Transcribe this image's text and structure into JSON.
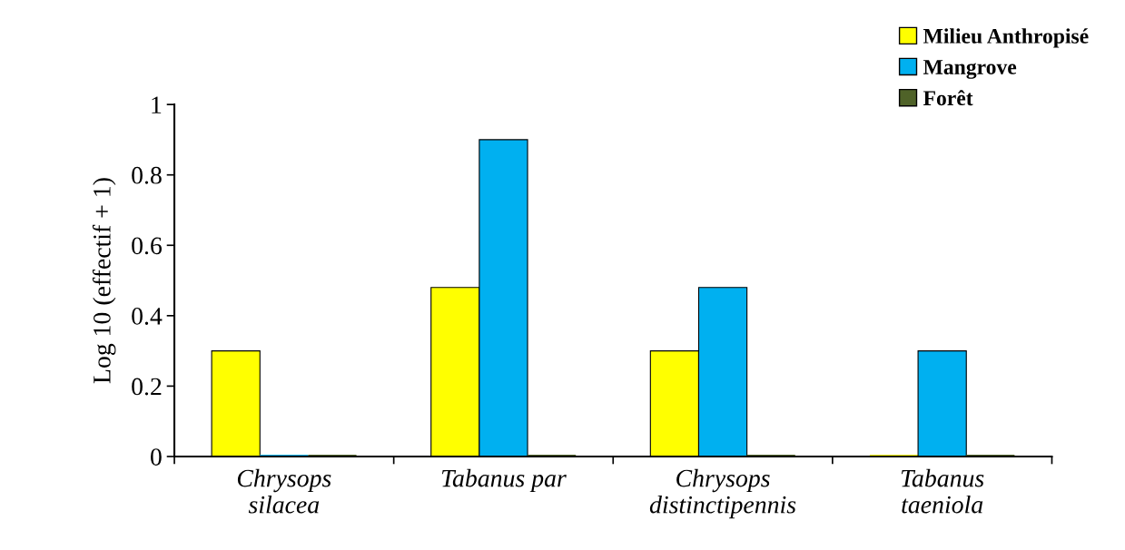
{
  "chart_data": {
    "type": "bar",
    "ylabel": "Log 10 (effectif + 1)",
    "categories": [
      "Chrysops\nsilacea",
      "Tabanus par",
      "Chrysops\ndistinctipennis",
      "Tabanus\ntaeniola"
    ],
    "series": [
      {
        "name": "Milieu Anthropisé",
        "color": "#ffff00",
        "values": [
          0.3,
          0.48,
          0.3,
          0
        ]
      },
      {
        "name": "Mangrove",
        "color": "#00b0f0",
        "values": [
          0,
          0.9,
          0.48,
          0.3
        ]
      },
      {
        "name": "Forêt",
        "color": "#4f6228",
        "values": [
          0,
          0,
          0,
          0
        ]
      }
    ],
    "ylim": [
      0,
      1
    ],
    "yticks": [
      0,
      0.2,
      0.4,
      0.6,
      0.8,
      1
    ],
    "grid": false,
    "legend": "top right"
  }
}
